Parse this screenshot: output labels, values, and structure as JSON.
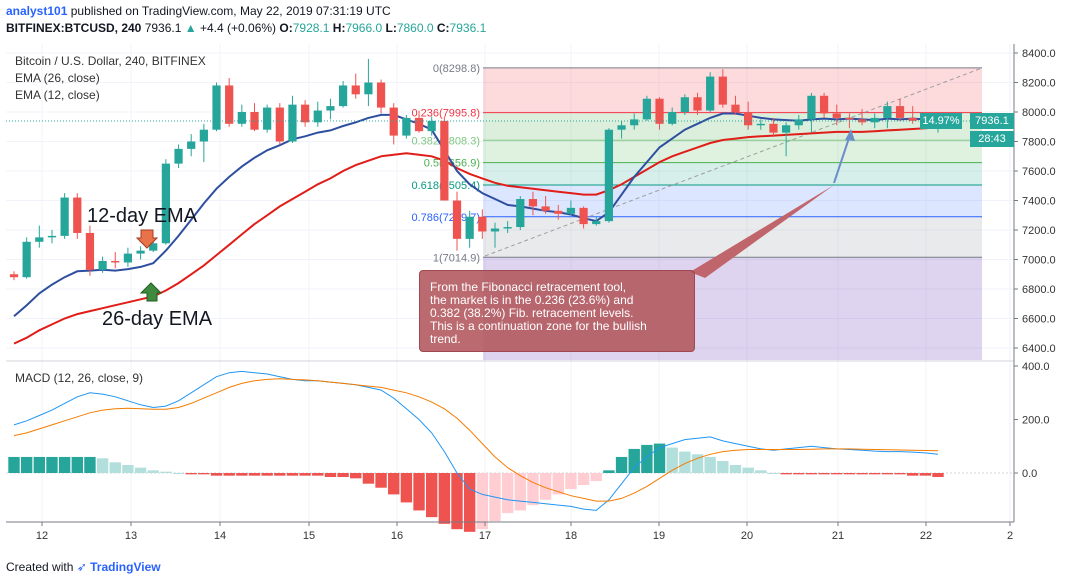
{
  "header": {
    "line1_user": "analyst101",
    "line1_rest": " published on TradingView.com, May 22, 2019 07:31:19 UTC",
    "symbol": "BITFINEX:BTCUSD, 240",
    "last": "7936.1",
    "change": "+4.4 (+0.06%)",
    "o_label": "O:",
    "o": "7928.1",
    "h_label": "H:",
    "h": "7966.0",
    "l_label": "L:",
    "l": "7860.0",
    "c_label": "C:",
    "c": "7936.1"
  },
  "legend": {
    "title": "Bitcoin / U.S. Dollar, 240, BITFINEX",
    "ema26": "EMA (26, close)",
    "ema12": "EMA (12, close)",
    "macd": "MACD (12, 26, close, 9)"
  },
  "annotations": {
    "ema12_label": "12-day EMA",
    "ema26_label": "26-day EMA",
    "callout": "From the Fibonacci retracement tool,\n the market is in the 0.236 (23.6%) and\n0.382 (38.2%) Fib. retracement levels.\nThis is a continuation zone for the bullish\ntrend."
  },
  "tags": {
    "price": "7936.1",
    "countdown": "28:43",
    "percent": "14.97%"
  },
  "footer": {
    "prefix": "Created with",
    "brand": "TradingView"
  },
  "colors": {
    "up": "#26a69a",
    "down": "#ef5350",
    "ema12": "#2e4fa0",
    "ema26": "#e11d18",
    "macd": "#2196f3",
    "signal": "#f57c00"
  },
  "chart_data": {
    "type": "candlestick",
    "price_axis": {
      "min": 6300,
      "max": 8500,
      "ticks": [
        "8400.0",
        "8200.0",
        "8000.0",
        "7800.0",
        "7600.0",
        "7400.0",
        "7200.0",
        "7000.0",
        "6800.0",
        "6600.0",
        "6400.0"
      ]
    },
    "macd_axis": {
      "ticks": [
        "400.0",
        "200.0",
        "0.0"
      ]
    },
    "x_labels": [
      "12",
      "13",
      "14",
      "15",
      "16",
      "17",
      "18",
      "19",
      "20",
      "21",
      "22",
      "2"
    ],
    "fib_levels": [
      {
        "label": "0(8298.8)",
        "price": 8298.8,
        "color": "#787b86"
      },
      {
        "label": "0.236(7995.8)",
        "price": 7995.8,
        "color": "#f23645"
      },
      {
        "label": "0.382(7808.3)",
        "price": 7808.3,
        "color": "#81c784"
      },
      {
        "label": "0.5(7656.9)",
        "price": 7656.9,
        "color": "#4caf50"
      },
      {
        "label": "0.618(7505.4)",
        "price": 7505.4,
        "color": "#089981"
      },
      {
        "label": "0.786(7289.7)",
        "price": 7289.7,
        "color": "#2962ff"
      },
      {
        "label": "1(7014.9)",
        "price": 7014.9,
        "color": "#787b86"
      }
    ],
    "candles": [
      [
        6900,
        6920,
        6860,
        6880
      ],
      [
        6880,
        7150,
        6870,
        7120
      ],
      [
        7120,
        7230,
        7080,
        7150
      ],
      [
        7150,
        7200,
        7110,
        7160
      ],
      [
        7160,
        7450,
        7140,
        7420
      ],
      [
        7420,
        7450,
        7140,
        7180
      ],
      [
        7180,
        7230,
        6890,
        6930
      ],
      [
        6930,
        7020,
        6910,
        6990
      ],
      [
        6990,
        7050,
        6940,
        6980
      ],
      [
        6980,
        7080,
        6950,
        7040
      ],
      [
        7040,
        7090,
        7000,
        7060
      ],
      [
        7060,
        7130,
        7050,
        7110
      ],
      [
        7110,
        7680,
        7100,
        7650
      ],
      [
        7650,
        7780,
        7620,
        7750
      ],
      [
        7750,
        7850,
        7700,
        7800
      ],
      [
        7800,
        7920,
        7660,
        7880
      ],
      [
        7880,
        8200,
        7870,
        8180
      ],
      [
        8180,
        8230,
        7900,
        7920
      ],
      [
        7920,
        8050,
        7900,
        8000
      ],
      [
        8000,
        8060,
        7870,
        7880
      ],
      [
        7880,
        8050,
        7860,
        8030
      ],
      [
        8030,
        8060,
        7780,
        7800
      ],
      [
        7800,
        8110,
        7790,
        8050
      ],
      [
        8050,
        8080,
        7900,
        7930
      ],
      [
        7930,
        8070,
        7900,
        8010
      ],
      [
        8010,
        8090,
        7950,
        8040
      ],
      [
        8040,
        8210,
        8030,
        8180
      ],
      [
        8180,
        8260,
        8090,
        8120
      ],
      [
        8120,
        8360,
        8040,
        8200
      ],
      [
        8200,
        8220,
        7990,
        8030
      ],
      [
        8030,
        8060,
        7780,
        7840
      ],
      [
        7840,
        7980,
        7820,
        7960
      ],
      [
        7960,
        8010,
        7860,
        7870
      ],
      [
        7870,
        7970,
        7840,
        7940
      ],
      [
        7940,
        7970,
        7400,
        7400
      ],
      [
        7400,
        7460,
        7060,
        7140
      ],
      [
        7140,
        7330,
        7080,
        7290
      ],
      [
        7290,
        7340,
        7140,
        7190
      ],
      [
        7190,
        7250,
        7080,
        7210
      ],
      [
        7210,
        7260,
        7180,
        7220
      ],
      [
        7220,
        7430,
        7200,
        7410
      ],
      [
        7410,
        7460,
        7300,
        7360
      ],
      [
        7360,
        7430,
        7310,
        7330
      ],
      [
        7330,
        7370,
        7270,
        7310
      ],
      [
        7310,
        7400,
        7300,
        7350
      ],
      [
        7350,
        7360,
        7210,
        7240
      ],
      [
        7240,
        7290,
        7230,
        7260
      ],
      [
        7260,
        7890,
        7250,
        7880
      ],
      [
        7880,
        7940,
        7820,
        7910
      ],
      [
        7910,
        7990,
        7880,
        7950
      ],
      [
        7950,
        8110,
        7940,
        8090
      ],
      [
        8090,
        8100,
        7880,
        7920
      ],
      [
        7920,
        8030,
        7910,
        8000
      ],
      [
        8000,
        8120,
        7980,
        8100
      ],
      [
        8100,
        8130,
        7980,
        8010
      ],
      [
        8010,
        8270,
        8000,
        8240
      ],
      [
        8240,
        8290,
        8030,
        8050
      ],
      [
        8050,
        8110,
        7980,
        8000
      ],
      [
        8000,
        8070,
        7880,
        7910
      ],
      [
        7910,
        7950,
        7880,
        7920
      ],
      [
        7920,
        7960,
        7830,
        7860
      ],
      [
        7860,
        7930,
        7700,
        7910
      ],
      [
        7910,
        7980,
        7880,
        7950
      ],
      [
        7950,
        8130,
        7860,
        8110
      ],
      [
        8110,
        8130,
        7960,
        7990
      ],
      [
        7990,
        8050,
        7910,
        7960
      ],
      [
        7960,
        7990,
        7890,
        7950
      ],
      [
        7950,
        8020,
        7910,
        7930
      ],
      [
        7930,
        7990,
        7890,
        7960
      ],
      [
        7960,
        8070,
        7890,
        8040
      ],
      [
        8040,
        8090,
        7940,
        7960
      ],
      [
        7960,
        8040,
        7920,
        7940
      ],
      [
        7940,
        7980,
        7910,
        7928
      ],
      [
        7928,
        7966,
        7860,
        7936
      ]
    ],
    "ema12": [
      6615,
      6690,
      6770,
      6830,
      6880,
      6920,
      6925,
      6930,
      6925,
      6935,
      6950,
      6975,
      7060,
      7160,
      7270,
      7380,
      7480,
      7560,
      7630,
      7690,
      7740,
      7775,
      7815,
      7835,
      7860,
      7875,
      7905,
      7930,
      7960,
      7980,
      7980,
      7950,
      7920,
      7880,
      7740,
      7600,
      7510,
      7450,
      7410,
      7370,
      7360,
      7345,
      7330,
      7320,
      7305,
      7280,
      7260,
      7320,
      7440,
      7560,
      7660,
      7760,
      7820,
      7880,
      7920,
      7960,
      7990,
      7990,
      7975,
      7960,
      7950,
      7945,
      7940,
      7950,
      7955,
      7950,
      7955,
      7950,
      7945,
      7955,
      7950,
      7955,
      7950,
      7950
    ],
    "ema26": [
      6430,
      6470,
      6520,
      6560,
      6600,
      6630,
      6650,
      6670,
      6690,
      6710,
      6730,
      6750,
      6790,
      6840,
      6900,
      6960,
      7030,
      7100,
      7170,
      7240,
      7300,
      7360,
      7410,
      7460,
      7510,
      7550,
      7600,
      7640,
      7670,
      7700,
      7710,
      7720,
      7710,
      7700,
      7670,
      7620,
      7580,
      7550,
      7520,
      7500,
      7490,
      7480,
      7470,
      7460,
      7450,
      7440,
      7440,
      7470,
      7510,
      7560,
      7610,
      7660,
      7700,
      7730,
      7760,
      7790,
      7810,
      7820,
      7830,
      7835,
      7840,
      7845,
      7850,
      7855,
      7860,
      7865,
      7865,
      7865,
      7870,
      7875,
      7880,
      7885,
      7890,
      7895
    ],
    "macd": [
      180,
      195,
      215,
      235,
      260,
      285,
      300,
      295,
      285,
      270,
      255,
      245,
      250,
      270,
      300,
      330,
      360,
      375,
      380,
      375,
      370,
      360,
      350,
      345,
      345,
      340,
      335,
      330,
      320,
      310,
      280,
      240,
      200,
      150,
      80,
      0,
      -60,
      -80,
      -90,
      -100,
      -105,
      -110,
      -115,
      -120,
      -125,
      -135,
      -140,
      -100,
      -40,
      20,
      60,
      95,
      110,
      125,
      130,
      135,
      120,
      110,
      100,
      90,
      85,
      90,
      95,
      100,
      95,
      90,
      88,
      85,
      82,
      80,
      80,
      78,
      75,
      70
    ],
    "signal": [
      140,
      150,
      165,
      180,
      195,
      210,
      225,
      235,
      240,
      242,
      240,
      238,
      238,
      245,
      260,
      280,
      300,
      320,
      335,
      345,
      350,
      352,
      350,
      348,
      345,
      340,
      335,
      330,
      325,
      320,
      310,
      300,
      285,
      265,
      240,
      205,
      160,
      110,
      60,
      20,
      -10,
      -35,
      -55,
      -70,
      -85,
      -95,
      -105,
      -105,
      -95,
      -75,
      -50,
      -20,
      10,
      35,
      55,
      70,
      80,
      85,
      88,
      88,
      88,
      88,
      88,
      89,
      90,
      90,
      90,
      89,
      88,
      87,
      86,
      85,
      84,
      83
    ],
    "hist": [
      60,
      60,
      60,
      60,
      60,
      60,
      60,
      55,
      40,
      30,
      20,
      10,
      5,
      0,
      -5,
      -5,
      -10,
      -10,
      -10,
      -10,
      -10,
      -10,
      -10,
      -10,
      -10,
      -15,
      -15,
      -20,
      -40,
      -55,
      -80,
      -110,
      -140,
      -165,
      -190,
      -210,
      -220,
      -210,
      -180,
      -150,
      -140,
      -120,
      -100,
      -80,
      -60,
      -45,
      -30,
      10,
      60,
      90,
      105,
      110,
      95,
      80,
      70,
      60,
      45,
      30,
      20,
      10,
      0,
      -5,
      -5,
      -5,
      -5,
      -5,
      -5,
      -5,
      -5,
      -5,
      -5,
      -10,
      -10,
      -15
    ]
  }
}
